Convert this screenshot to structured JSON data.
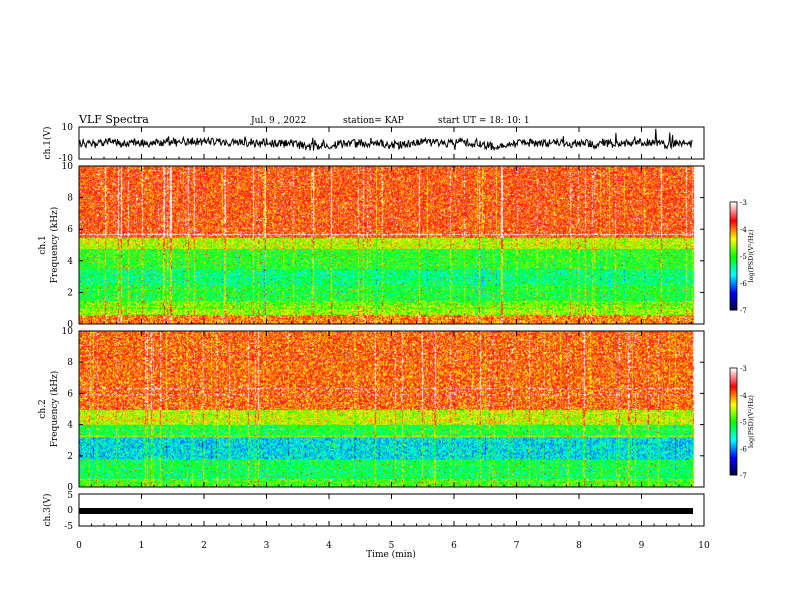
{
  "header": {
    "title": "VLF Spectra",
    "date": "Jul. 9 , 2022",
    "station": "station= KAP",
    "start": "start UT = 18: 10: 1"
  },
  "colors": {
    "trace": "#000000",
    "cmap": [
      "#00003c",
      "#0000ff",
      "#00ffff",
      "#00ff00",
      "#ffff00",
      "#ff0000",
      "#ffffff"
    ]
  },
  "chart_data": [
    {
      "type": "line",
      "panel": "ch1-waveform",
      "ylabel": "ch.1(V)",
      "ylim": [
        -10,
        10
      ],
      "yticks": [
        "10",
        "-10"
      ],
      "x_range_min": [
        0,
        9.82
      ],
      "description_values": "noisy waveform centered near 0 V, mostly between -5 and 5 V"
    },
    {
      "type": "heatmap",
      "panel": "ch1-spectrogram",
      "ylabel": "ch.1\nFrequency (kHz)",
      "ylim": [
        0,
        10
      ],
      "yticks": [
        "0",
        "2",
        "4",
        "6",
        "8",
        "10"
      ],
      "colorbar": {
        "label": "log(PSD)(V²/Hz)",
        "range": [
          -7,
          -3
        ],
        "ticks": [
          "-3",
          "-4",
          "-5",
          "-6",
          "-7"
        ]
      },
      "bands_khz": [
        {
          "from": 0.0,
          "to": 0.6,
          "level": -4.0
        },
        {
          "from": 0.6,
          "to": 1.0,
          "level": -4.6
        },
        {
          "from": 1.0,
          "to": 1.5,
          "level": -4.8
        },
        {
          "from": 1.5,
          "to": 2.5,
          "level": -5.1
        },
        {
          "from": 2.5,
          "to": 3.5,
          "level": -5.3
        },
        {
          "from": 3.5,
          "to": 4.8,
          "level": -5.0
        },
        {
          "from": 4.8,
          "to": 5.5,
          "level": -4.5
        },
        {
          "from": 5.5,
          "to": 10.0,
          "level": -3.8
        }
      ]
    },
    {
      "type": "heatmap",
      "panel": "ch2-spectrogram",
      "ylabel": "ch.2\nFrequency (kHz)",
      "ylim": [
        0,
        10
      ],
      "yticks": [
        "0",
        "2",
        "4",
        "6",
        "8",
        "10"
      ],
      "colorbar": {
        "label": "log(PSD)(V²/Hz)",
        "range": [
          -7,
          -3
        ],
        "ticks": [
          "-3",
          "-4",
          "-5",
          "-6",
          "-7"
        ]
      },
      "bands_khz": [
        {
          "from": 0.0,
          "to": 0.5,
          "level": -4.9
        },
        {
          "from": 0.5,
          "to": 1.8,
          "level": -5.2
        },
        {
          "from": 1.8,
          "to": 3.2,
          "level": -5.7
        },
        {
          "from": 3.2,
          "to": 4.0,
          "level": -5.1
        },
        {
          "from": 4.0,
          "to": 5.0,
          "level": -4.5
        },
        {
          "from": 5.0,
          "to": 10.0,
          "level": -3.9
        }
      ]
    },
    {
      "type": "line",
      "panel": "ch3-waveform",
      "ylabel": "ch.3(V)",
      "ylim": [
        -5,
        5
      ],
      "yticks": [
        "5",
        "0",
        "-5"
      ],
      "level_range_v": [
        -1.0,
        0.0
      ]
    }
  ],
  "xaxis": {
    "label": "Time (min)",
    "range": [
      0,
      10
    ],
    "ticks": [
      "0",
      "1",
      "2",
      "3",
      "4",
      "5",
      "6",
      "7",
      "8",
      "9",
      "10"
    ],
    "data_end_min": 9.82
  }
}
